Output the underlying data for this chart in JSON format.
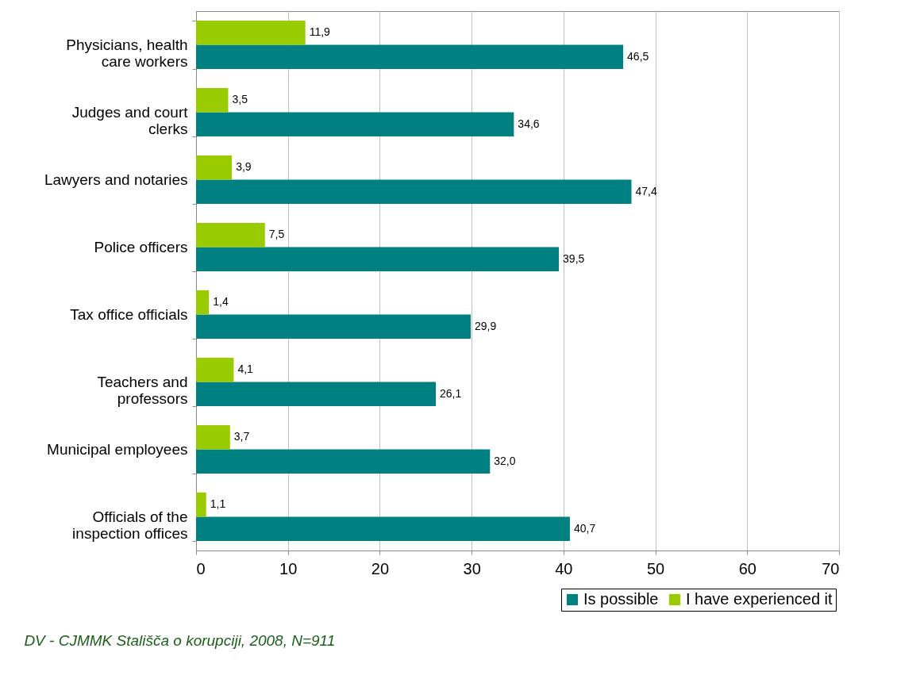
{
  "chart_data": {
    "type": "bar",
    "orientation": "horizontal",
    "categories": [
      "Physicians, health care workers",
      "Judges and court clerks",
      "Lawyers and notaries",
      "Police officers",
      "Tax office officials",
      "Teachers and professors",
      "Municipal employees",
      "Officials of the inspection offices"
    ],
    "series": [
      {
        "name": "Is possible",
        "color": "#008080",
        "values": [
          46.5,
          34.6,
          47.4,
          39.5,
          29.9,
          26.1,
          32.0,
          40.7
        ],
        "value_labels": [
          "46,5",
          "34,6",
          "47,4",
          "39,5",
          "29,9",
          "26,1",
          "32,0",
          "40,7"
        ]
      },
      {
        "name": "I have experienced it",
        "color": "#99cc00",
        "values": [
          11.9,
          3.5,
          3.9,
          7.5,
          1.4,
          4.1,
          3.7,
          1.1
        ],
        "value_labels": [
          "11,9",
          "3,5",
          "3,9",
          "7,5",
          "1,4",
          "4,1",
          "3,7",
          "1,1"
        ]
      }
    ],
    "xlim": [
      0,
      70
    ],
    "xticks": [
      0,
      10,
      20,
      30,
      40,
      50,
      60,
      70
    ],
    "grid": "x",
    "legend": "bottom right",
    "annotations": [
      "DV - CJMMK Stališča o korupciji, 2008, N=911"
    ]
  }
}
